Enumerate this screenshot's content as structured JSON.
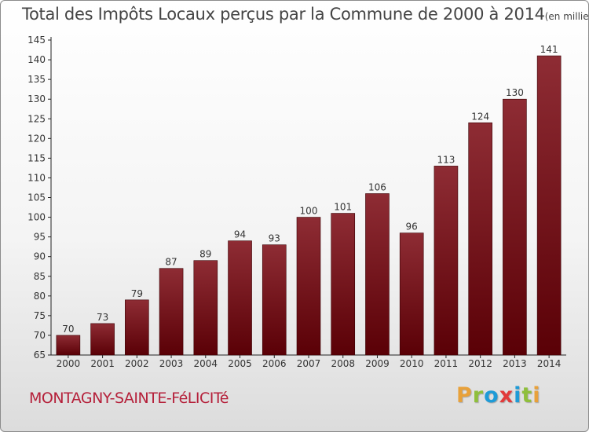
{
  "chart_data": {
    "type": "bar",
    "title": "Total des Impôts Locaux perçus par la Commune de 2000 à 2014",
    "unit": "(en milliers d'€)",
    "categories": [
      "2000",
      "2001",
      "2002",
      "2003",
      "2004",
      "2005",
      "2006",
      "2007",
      "2008",
      "2009",
      "2010",
      "2011",
      "2012",
      "2013",
      "2014"
    ],
    "values": [
      70,
      73,
      79,
      87,
      89,
      94,
      93,
      100,
      101,
      106,
      96,
      113,
      124,
      130,
      141
    ],
    "ylim": [
      65,
      145
    ],
    "yticks": [
      65,
      70,
      75,
      80,
      85,
      90,
      95,
      100,
      105,
      110,
      115,
      120,
      125,
      130,
      135,
      140,
      145
    ],
    "bar_color_top": "#8e2c34",
    "bar_color_bottom": "#5a0006",
    "grid": false
  },
  "footer": {
    "commune": "MONTAGNY-SAINTE-FéLICITé",
    "brand": "Proxiti",
    "brand_letters": [
      {
        "char": "P",
        "color": "#e8a13a"
      },
      {
        "char": "r",
        "color": "#8fbf3c"
      },
      {
        "char": "o",
        "color": "#1e9bd7"
      },
      {
        "char": "x",
        "color": "#e23a3a"
      },
      {
        "char": "i",
        "color": "#1e9bd7"
      },
      {
        "char": "t",
        "color": "#8fbf3c"
      },
      {
        "char": "i",
        "color": "#e8a13a"
      }
    ]
  }
}
